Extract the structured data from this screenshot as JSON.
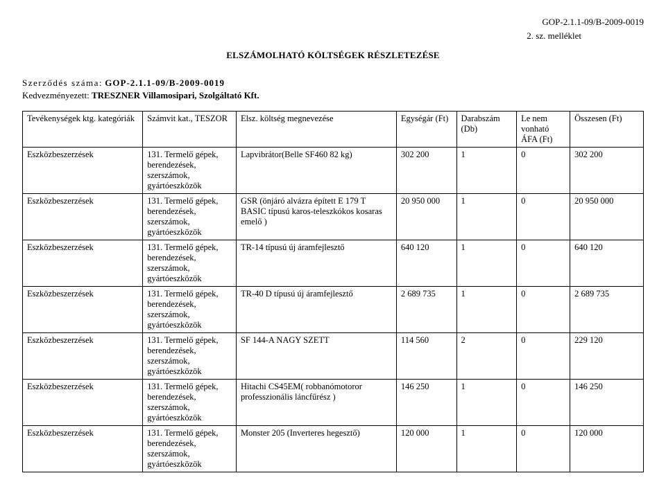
{
  "header": {
    "doc_id": "GOP-2.1.1-09/B-2009-0019",
    "attachment": "2. sz. melléklet",
    "title": "ELSZÁMOLHATÓ KÖLTSÉGEK RÉSZLETEZÉSE",
    "contract_label": "Szerződés száma:",
    "contract_number": "GOP-2.1.1-09/B-2009-0019",
    "beneficiary_label": "Kedvezményezett:",
    "beneficiary_name": "TRESZNER Villamosipari, Szolgáltató Kft."
  },
  "columns": [
    "Tevékenységek ktg. kategóriák",
    "Számvit kat., TESZOR",
    "Elsz. költség megnevezése",
    "Egységár (Ft)",
    "Darabszám (Db)",
    "Le nem vonható ÁFA (Ft)",
    "Összesen (Ft)"
  ],
  "rows": [
    {
      "cat": "Eszközbeszerzések",
      "teszor": "131. Termelő gépek, berendezések, szerszámok, gyártóeszközök",
      "desc": "Lapvibrátor(Belle SF460 82 kg)",
      "unit": "302 200",
      "qty": "1",
      "vat": "0",
      "total": "302 200"
    },
    {
      "cat": "Eszközbeszerzések",
      "teszor": "131. Termelő gépek, berendezések, szerszámok, gyártóeszközök",
      "desc": "GSR (önjáró alvázra épített E 179 T BASIC típusú karos-teleszkókos kosaras emelő )",
      "unit": "20 950 000",
      "qty": "1",
      "vat": "0",
      "total": "20 950 000"
    },
    {
      "cat": "Eszközbeszerzések",
      "teszor": "131. Termelő gépek, berendezések, szerszámok, gyártóeszközök",
      "desc": "TR-14 típusú új áramfejlesztő",
      "unit": "640 120",
      "qty": "1",
      "vat": "0",
      "total": "640 120"
    },
    {
      "cat": "Eszközbeszerzések",
      "teszor": "131. Termelő gépek, berendezések, szerszámok, gyártóeszközök",
      "desc": "TR-40 D típusú új áramfejlesztő",
      "unit": "2 689 735",
      "qty": "1",
      "vat": "0",
      "total": "2 689 735"
    },
    {
      "cat": "Eszközbeszerzések",
      "teszor": "131. Termelő gépek, berendezések, szerszámok, gyártóeszközök",
      "desc": "SF 144-A NAGY SZETT",
      "unit": "114 560",
      "qty": "2",
      "vat": "0",
      "total": "229 120"
    },
    {
      "cat": "Eszközbeszerzések",
      "teszor": "131. Termelő gépek, berendezések, szerszámok, gyártóeszközök",
      "desc": "Hitachi CS45EM( robbanómotoror professzionális láncfűrész )",
      "unit": "146 250",
      "qty": "1",
      "vat": "0",
      "total": "146 250"
    },
    {
      "cat": "Eszközbeszerzések",
      "teszor": "131. Termelő gépek, berendezések, szerszámok, gyártóeszközök",
      "desc": "Monster 205 (Inverteres hegesztő)",
      "unit": "120 000",
      "qty": "1",
      "vat": "0",
      "total": "120 000"
    }
  ]
}
